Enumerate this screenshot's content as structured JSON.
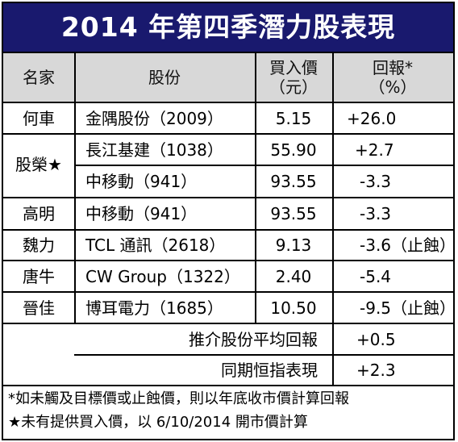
{
  "title": "2014 年第四季潛力股表現",
  "headers": {
    "name": "名家",
    "stock": "股份",
    "price_line1": "買入價",
    "price_line2": "（元）",
    "return_line1": "回報*",
    "return_line2": "（%）"
  },
  "rows": [
    {
      "name": "何車",
      "stock": "金隅股份（2009）",
      "price": "5.15",
      "ret": "+26.0"
    },
    {
      "name": "股榮★",
      "stock": "長江基建（1038）",
      "price": "55.90",
      "ret": "+2.7"
    },
    {
      "name": "",
      "stock": "中移動（941）",
      "price": "93.55",
      "ret": "-3.3"
    },
    {
      "name": "高明",
      "stock": "中移動（941）",
      "price": "93.55",
      "ret": "-3.3"
    },
    {
      "name": "魏力",
      "stock": "TCL 通訊（2618）",
      "price": "9.13",
      "ret": "-3.6（止蝕）"
    },
    {
      "name": "唐牛",
      "stock": "CW Group（1322）",
      "price": "2.40",
      "ret": "-5.4"
    },
    {
      "name": "晉佳",
      "stock": "博耳電力（1685）",
      "price": "10.50",
      "ret": "-9.5（止蝕）"
    }
  ],
  "summary": [
    {
      "label": "推介股份平均回報",
      "value": "+0.5"
    },
    {
      "label": "同期恒指表現",
      "value": "+2.3"
    }
  ],
  "footnotes": [
    "*如未觸及目標價或止蝕價，則以年底收市價計算回報",
    "★未有提供買入價，以 6/10/2014 開市價計算"
  ],
  "colors": {
    "title_bg": "#19196e",
    "header_bg": "#d8d8d8"
  }
}
